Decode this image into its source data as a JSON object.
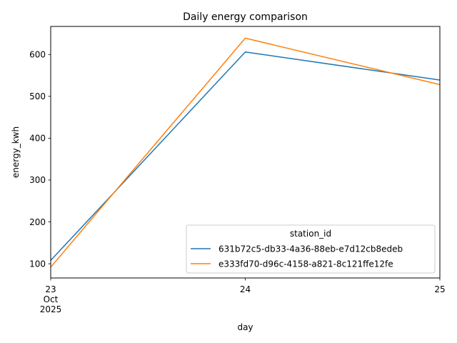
{
  "chart_data": {
    "type": "line",
    "title": "Daily energy comparison",
    "xlabel": "day",
    "ylabel": "energy_kwh",
    "x": [
      "2025-10-23",
      "2025-10-24",
      "2025-10-25"
    ],
    "x_tick_labels": [
      {
        "lines": [
          "23",
          "Oct",
          "2025"
        ]
      },
      {
        "lines": [
          "24"
        ]
      },
      {
        "lines": [
          "25"
        ]
      }
    ],
    "yticks": [
      100,
      200,
      300,
      400,
      500,
      600
    ],
    "ylim": [
      66,
      667
    ],
    "grid": false,
    "legend": {
      "title": "station_id",
      "placement": "lower right"
    },
    "series": [
      {
        "name": "631b72c5-db33-4a36-88eb-e7d12cb8edeb",
        "color": "#1f77b4",
        "values": [
          108,
          606,
          539
        ]
      },
      {
        "name": "e333fd70-d96c-4158-a821-8c121ffe12fe",
        "color": "#ff7f0e",
        "values": [
          92,
          639,
          528
        ]
      }
    ]
  }
}
